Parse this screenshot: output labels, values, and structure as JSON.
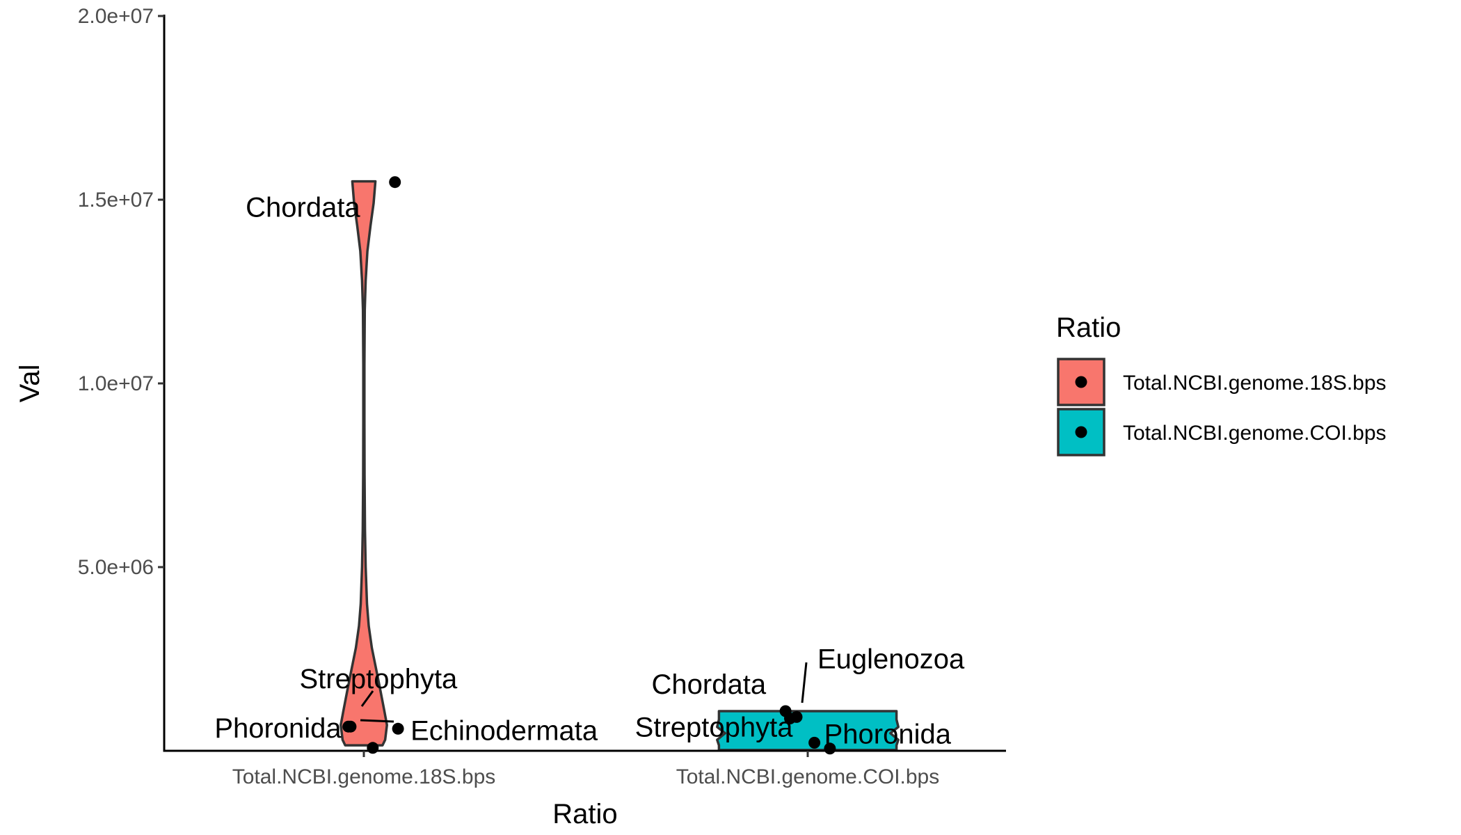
{
  "chart_data": {
    "type": "violin",
    "xlabel": "Ratio",
    "ylabel": "Val",
    "categories": [
      "Total.NCBI.genome.18S.bps",
      "Total.NCBI.genome.COI.bps"
    ],
    "ylim": [
      0,
      20000000
    ],
    "y_ticks": [
      {
        "value": 5000000,
        "label": "5.0e+06"
      },
      {
        "value": 10000000,
        "label": "1.0e+07"
      },
      {
        "value": 15000000,
        "label": "1.5e+07"
      },
      {
        "value": 20000000,
        "label": "2.0e+07"
      }
    ],
    "grid": false,
    "legend": {
      "title": "Ratio",
      "position": "right",
      "entries": [
        {
          "label": "Total.NCBI.genome.18S.bps",
          "color": "#F8766D"
        },
        {
          "label": "Total.NCBI.genome.COI.bps",
          "color": "#00BFC4"
        }
      ]
    },
    "violins": [
      {
        "category": "Total.NCBI.genome.18S.bps",
        "color": "#F8766D",
        "ymin": 150000,
        "ymax": 15500000,
        "profile": [
          [
            150000,
            0.42
          ],
          [
            300000,
            0.48
          ],
          [
            700000,
            0.52
          ],
          [
            1100000,
            0.46
          ],
          [
            1600000,
            0.38
          ],
          [
            2200000,
            0.28
          ],
          [
            2800000,
            0.18
          ],
          [
            3400000,
            0.11
          ],
          [
            4000000,
            0.07
          ],
          [
            5000000,
            0.04
          ],
          [
            6000000,
            0.025
          ],
          [
            7500000,
            0.016
          ],
          [
            9000000,
            0.012
          ],
          [
            10500000,
            0.012
          ],
          [
            12000000,
            0.02
          ],
          [
            12800000,
            0.04
          ],
          [
            13600000,
            0.08
          ],
          [
            14300000,
            0.15
          ],
          [
            14900000,
            0.22
          ],
          [
            15500000,
            0.26
          ]
        ]
      },
      {
        "category": "Total.NCBI.genome.COI.bps",
        "color": "#00BFC4",
        "ymin": 20000,
        "ymax": 1080000,
        "profile": [
          [
            20000,
            1.0
          ],
          [
            150000,
            1.0
          ],
          [
            300000,
            1.02
          ],
          [
            480000,
            0.93
          ],
          [
            650000,
            1.02
          ],
          [
            850000,
            1.0
          ],
          [
            1080000,
            1.0
          ]
        ]
      }
    ],
    "points": [
      {
        "category": 0,
        "jitter": 0.07,
        "y": 15480000,
        "label": "Chordata"
      },
      {
        "category": 0,
        "jitter": -0.03,
        "y": 660000,
        "label": "Streptophyta"
      },
      {
        "category": 0,
        "jitter": -0.035,
        "y": 660000,
        "label": "Phoronida"
      },
      {
        "category": 0,
        "jitter": 0.077,
        "y": 600000,
        "label": "Echinodermata"
      },
      {
        "category": 0,
        "jitter": 0.02,
        "y": 80000,
        "label": ""
      },
      {
        "category": 1,
        "jitter": -0.05,
        "y": 1080000,
        "label": "Chordata"
      },
      {
        "category": 1,
        "jitter": -0.025,
        "y": 920000,
        "label": "Euglenozoa"
      },
      {
        "category": 1,
        "jitter": -0.04,
        "y": 880000,
        "label": "Streptophyta"
      },
      {
        "category": 1,
        "jitter": 0.015,
        "y": 220000,
        "label": "Phoronida"
      },
      {
        "category": 1,
        "jitter": 0.05,
        "y": 60000,
        "label": ""
      }
    ]
  }
}
